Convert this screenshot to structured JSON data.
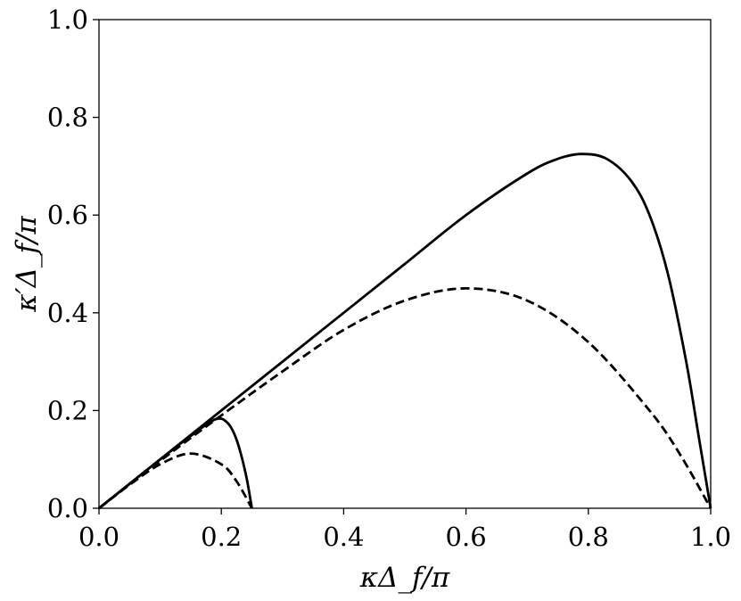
{
  "chart_data": {
    "type": "line",
    "title": "",
    "xlabel": "κΔ_f/π",
    "ylabel": "κ′Δ_f/π",
    "xlim": [
      0.0,
      1.0
    ],
    "ylim": [
      0.0,
      1.0
    ],
    "grid": false,
    "x_ticks": [
      "0.0",
      "0.2",
      "0.4",
      "0.6",
      "0.8",
      "1.0"
    ],
    "y_ticks": [
      "0.0",
      "0.2",
      "0.4",
      "0.6",
      "0.8",
      "1.0"
    ],
    "series": [
      {
        "style": "solid",
        "x": [
          0.0,
          0.05,
          0.1,
          0.15,
          0.19,
          0.21,
          0.225,
          0.24,
          0.25
        ],
        "y": [
          0.0,
          0.05,
          0.1,
          0.148,
          0.182,
          0.175,
          0.14,
          0.07,
          0.0
        ]
      },
      {
        "style": "dashed",
        "x": [
          0.0,
          0.05,
          0.1,
          0.15,
          0.2,
          0.225,
          0.25
        ],
        "y": [
          0.0,
          0.048,
          0.09,
          0.112,
          0.09,
          0.055,
          0.0
        ]
      },
      {
        "style": "solid",
        "x": [
          0.0,
          0.1,
          0.2,
          0.3,
          0.4,
          0.5,
          0.6,
          0.7,
          0.75,
          0.79,
          0.83,
          0.87,
          0.9,
          0.93,
          0.96,
          0.98,
          1.0
        ],
        "y": [
          0.0,
          0.1,
          0.2,
          0.3,
          0.4,
          0.5,
          0.6,
          0.685,
          0.715,
          0.725,
          0.715,
          0.67,
          0.6,
          0.48,
          0.3,
          0.15,
          0.0
        ]
      },
      {
        "style": "dashed",
        "x": [
          0.0,
          0.1,
          0.2,
          0.3,
          0.4,
          0.5,
          0.6,
          0.7,
          0.8,
          0.9,
          0.95,
          1.0
        ],
        "y": [
          0.0,
          0.097,
          0.19,
          0.28,
          0.365,
          0.425,
          0.45,
          0.425,
          0.34,
          0.2,
          0.11,
          0.0
        ]
      }
    ]
  }
}
